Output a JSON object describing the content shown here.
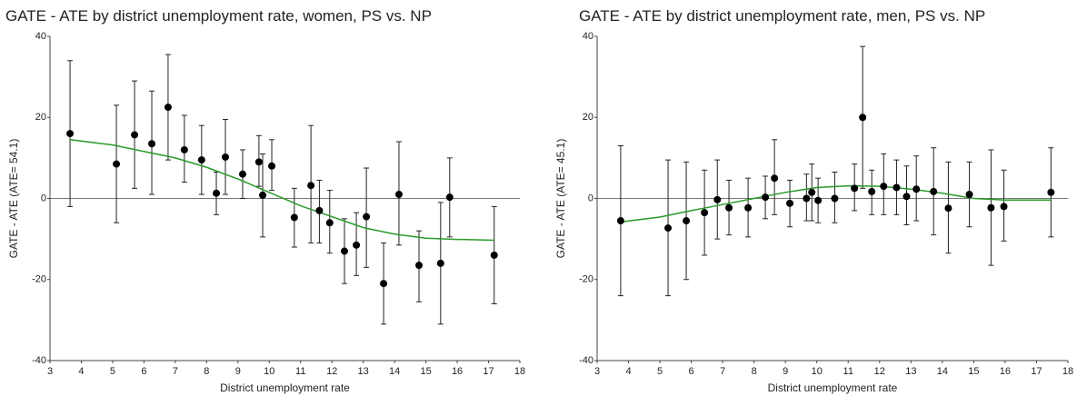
{
  "chart_data": [
    {
      "type": "scatter",
      "title": "GATE - ATE by district unemployment rate, women, PS vs. NP",
      "x_label": "District unemployment rate",
      "y_label": "GATE - ATE (ATE= 54.1)",
      "xlim": [
        3,
        18
      ],
      "xticks": [
        3,
        4,
        5,
        6,
        7,
        8,
        9,
        10,
        11,
        12,
        13,
        14,
        15,
        16,
        17,
        18
      ],
      "ylim": [
        -40,
        40
      ],
      "yticks": [
        -40,
        -20,
        0,
        20,
        40
      ],
      "color": "#000000",
      "fit_color": "#2a9a2a",
      "x": [
        3.64,
        5.12,
        5.7,
        6.25,
        6.77,
        7.29,
        7.84,
        8.31,
        8.6,
        9.15,
        9.67,
        9.79,
        10.08,
        10.8,
        11.33,
        11.6,
        11.93,
        12.4,
        12.78,
        13.1,
        13.65,
        14.14,
        14.78,
        15.47,
        15.76,
        17.18
      ],
      "values": [
        16,
        8.5,
        15.7,
        13.5,
        22.5,
        12,
        9.5,
        1.3,
        10.2,
        6,
        9,
        0.8,
        8,
        -4.7,
        3.2,
        -3,
        -6,
        -13,
        -11.5,
        -4.5,
        -21,
        1,
        -16.5,
        -16,
        0.3,
        -14
      ],
      "upper": [
        34,
        23,
        29,
        26.5,
        35.5,
        20.5,
        18,
        6.5,
        19.5,
        12,
        15.5,
        11,
        14.5,
        2.5,
        18,
        4.5,
        2,
        -5,
        -3.5,
        7.5,
        -11,
        14,
        -8,
        -1,
        10,
        -2
      ],
      "lower": [
        -2,
        -6,
        2.5,
        1,
        9.5,
        4,
        1,
        -4,
        1,
        0,
        3,
        -9.5,
        2,
        -12,
        -11,
        -11,
        -13.5,
        -21,
        -19,
        -17,
        -31,
        -11.5,
        -25.5,
        -31,
        -9.5,
        -26
      ],
      "fit_x": [
        3.64,
        5,
        6,
        7,
        8,
        9,
        10,
        11,
        12,
        13,
        14,
        15,
        16,
        17.18
      ],
      "fit_values": [
        14.5,
        13.2,
        11.6,
        10,
        7.7,
        4.8,
        1.5,
        -1.8,
        -4.5,
        -7.2,
        -8.8,
        -9.8,
        -10.1,
        -10.3
      ]
    },
    {
      "type": "scatter",
      "title": "GATE - ATE by district unemployment rate, men, PS vs. NP",
      "x_label": "District unemployment rate",
      "y_label": "GATE - ATE (ATE= 45.1)",
      "xlim": [
        3,
        18
      ],
      "xticks": [
        3,
        4,
        5,
        6,
        7,
        8,
        9,
        10,
        11,
        12,
        13,
        14,
        15,
        16,
        17,
        18
      ],
      "ylim": [
        -40,
        40
      ],
      "yticks": [
        -40,
        -20,
        0,
        20,
        40
      ],
      "color": "#000000",
      "fit_color": "#2a9a2a",
      "x": [
        3.75,
        5.26,
        5.84,
        6.42,
        6.83,
        7.2,
        7.81,
        8.36,
        8.65,
        9.14,
        9.67,
        9.84,
        10.04,
        10.57,
        11.2,
        11.46,
        11.75,
        12.13,
        12.54,
        12.86,
        13.17,
        13.72,
        14.19,
        14.86,
        15.55,
        15.96,
        17.46
      ],
      "values": [
        -5.5,
        -7.3,
        -5.5,
        -3.5,
        -0.3,
        -2.3,
        -2.3,
        0.3,
        5,
        -1.2,
        0,
        1.5,
        -0.5,
        0,
        2.5,
        20,
        1.7,
        3,
        2.7,
        0.5,
        2.3,
        1.7,
        -2.4,
        1,
        -2.3,
        -2,
        1.5
      ],
      "upper": [
        13,
        9.5,
        9,
        7,
        9.5,
        4.5,
        5,
        5.5,
        14.5,
        4.5,
        6,
        8.5,
        5,
        6.5,
        8.5,
        37.5,
        7,
        11,
        9.5,
        8,
        10.5,
        12.5,
        9,
        9,
        12,
        7,
        12.5
      ],
      "lower": [
        -24,
        -24,
        -20,
        -14,
        -10,
        -9,
        -9.5,
        -5,
        -4,
        -7,
        -5.5,
        -5.5,
        -6,
        -6,
        -3,
        2.5,
        -4,
        -4,
        -4,
        -6.5,
        -5.5,
        -9,
        -13.5,
        -7,
        -16.5,
        -10.5,
        -9.5
      ],
      "fit_x": [
        3.75,
        5,
        6,
        7,
        8,
        9,
        10,
        11,
        12,
        13,
        14,
        15,
        16,
        17.46
      ],
      "fit_values": [
        -5.8,
        -4.6,
        -3,
        -1.5,
        0,
        1.5,
        2.7,
        3.1,
        3,
        2.3,
        1.3,
        0,
        -0.4,
        -0.4
      ]
    }
  ]
}
